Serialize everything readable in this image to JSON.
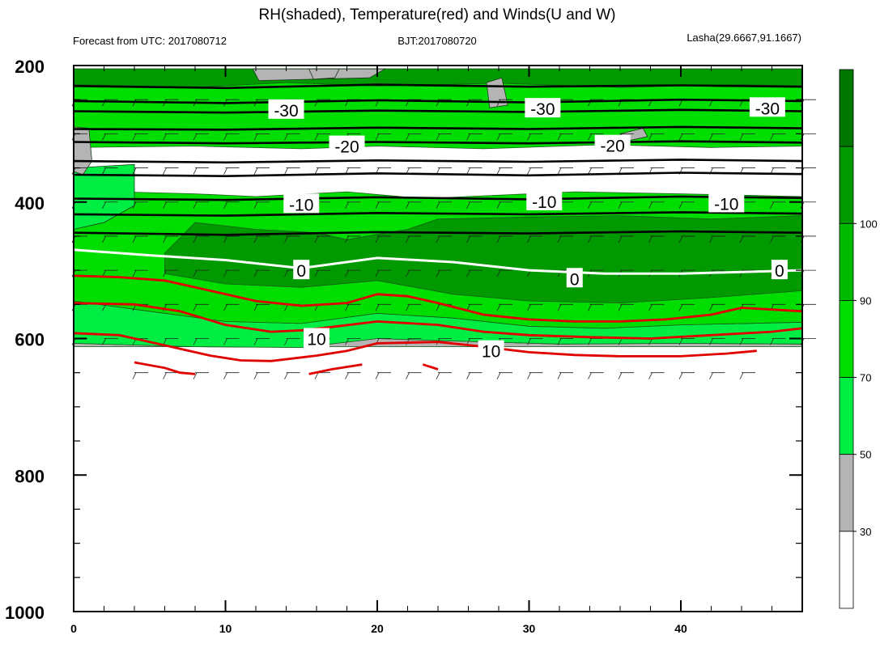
{
  "chart_data": {
    "type": "heatmap",
    "title": "RH(shaded), Temperature(red) and Winds(U and W)",
    "subtitle_left": "Forecast from UTC: 2017080712",
    "subtitle_center": "BJT:2017080720",
    "subtitle_right": "Lasha(29.6667,91.1667)",
    "x": {
      "range": [
        0,
        48
      ],
      "ticks": [
        0,
        10,
        20,
        30,
        40
      ],
      "tick_labels": [
        "0",
        "10",
        "20",
        "30",
        "40"
      ]
    },
    "y": {
      "range": [
        200,
        1000
      ],
      "inverted": true,
      "ticks": [
        200,
        400,
        600,
        800,
        1000
      ],
      "tick_labels": [
        "200",
        "400",
        "600",
        "800",
        "1000"
      ]
    },
    "colorbar": {
      "levels": [
        30,
        50,
        70,
        90,
        100
      ],
      "level_labels": [
        "30",
        "50",
        "70",
        "90",
        "100"
      ],
      "colors": [
        "#ffffff",
        "#b4b4b4",
        "#00ee44",
        "#00dd00",
        "#00bb00",
        "#009900",
        "#007700"
      ]
    },
    "rh_bands": [
      {
        "name": "terrain",
        "color": "#b4b4b4",
        "top": [
          [
            0,
            607
          ],
          [
            8,
            612
          ],
          [
            15,
            613
          ],
          [
            20,
            600
          ],
          [
            24,
            603
          ],
          [
            32,
            608
          ],
          [
            40,
            607
          ],
          [
            48,
            608
          ]
        ],
        "bottom": [
          [
            0,
            612
          ],
          [
            48,
            612
          ]
        ]
      },
      {
        "name": "50-70",
        "color": "#00ee44",
        "top": [
          [
            0,
            545
          ],
          [
            5,
            560
          ],
          [
            10,
            575
          ],
          [
            15,
            578
          ],
          [
            20,
            563
          ],
          [
            25,
            570
          ],
          [
            30,
            582
          ],
          [
            35,
            585
          ],
          [
            40,
            580
          ],
          [
            48,
            576
          ]
        ],
        "bottom": [
          [
            0,
            607
          ],
          [
            8,
            612
          ],
          [
            15,
            613
          ],
          [
            20,
            600
          ],
          [
            24,
            603
          ],
          [
            32,
            608
          ],
          [
            40,
            607
          ],
          [
            48,
            608
          ]
        ]
      },
      {
        "name": "70-90",
        "color": "#00dd00",
        "top": [
          [
            0,
            395
          ],
          [
            3,
            385
          ],
          [
            8,
            388
          ],
          [
            12,
            392
          ],
          [
            18,
            385
          ],
          [
            23,
            395
          ],
          [
            28,
            390
          ],
          [
            33,
            385
          ],
          [
            40,
            388
          ],
          [
            48,
            392
          ]
        ],
        "bottom": [
          [
            0,
            545
          ],
          [
            5,
            560
          ],
          [
            10,
            575
          ],
          [
            15,
            578
          ],
          [
            20,
            563
          ],
          [
            25,
            570
          ],
          [
            30,
            582
          ],
          [
            35,
            585
          ],
          [
            40,
            580
          ],
          [
            48,
            576
          ]
        ]
      },
      {
        "name": "90-100 core",
        "color": "#009900",
        "top": [
          [
            6,
            475
          ],
          [
            8,
            430
          ],
          [
            12,
            440
          ],
          [
            16,
            445
          ],
          [
            18,
            455
          ],
          [
            22,
            440
          ],
          [
            24,
            425
          ],
          [
            30,
            422
          ],
          [
            36,
            420
          ],
          [
            42,
            425
          ],
          [
            48,
            420
          ]
        ],
        "bottom": [
          [
            6,
            505
          ],
          [
            10,
            520
          ],
          [
            15,
            525
          ],
          [
            20,
            515
          ],
          [
            25,
            535
          ],
          [
            30,
            545
          ],
          [
            36,
            548
          ],
          [
            42,
            540
          ],
          [
            48,
            530
          ]
        ]
      },
      {
        "name": "upper 70-90",
        "color": "#00dd00",
        "top": [
          [
            0,
            205
          ],
          [
            48,
            205
          ]
        ],
        "bottom": [
          [
            0,
            320
          ],
          [
            8,
            318
          ],
          [
            15,
            322
          ],
          [
            20,
            318
          ],
          [
            27,
            322
          ],
          [
            35,
            316
          ],
          [
            42,
            320
          ],
          [
            48,
            318
          ]
        ]
      },
      {
        "name": "upper 90+",
        "color": "#009900",
        "top": [
          [
            0,
            205
          ],
          [
            48,
            205
          ]
        ],
        "bottom": [
          [
            0,
            228
          ],
          [
            8,
            232
          ],
          [
            14,
            225
          ],
          [
            20,
            230
          ],
          [
            28,
            226
          ],
          [
            36,
            232
          ],
          [
            44,
            228
          ],
          [
            48,
            230
          ]
        ]
      }
    ],
    "rh_patches": [
      {
        "color": "#00ee44",
        "points": [
          [
            0,
            350
          ],
          [
            4,
            345
          ],
          [
            4,
            405
          ],
          [
            2,
            430
          ],
          [
            0,
            440
          ]
        ]
      },
      {
        "color": "#b4b4b4",
        "points": [
          [
            0,
            290
          ],
          [
            1,
            292
          ],
          [
            1.2,
            340
          ],
          [
            0.6,
            360
          ],
          [
            0,
            355
          ]
        ]
      },
      {
        "color": "#b4b4b4",
        "points": [
          [
            11.8,
            205
          ],
          [
            20.5,
            205
          ],
          [
            19.5,
            218
          ],
          [
            12.2,
            222
          ]
        ]
      },
      {
        "color": "#b4b4b4",
        "points": [
          [
            15.5,
            205
          ],
          [
            17.5,
            205
          ],
          [
            17.2,
            218
          ],
          [
            15.8,
            220
          ]
        ]
      },
      {
        "color": "#b4b4b4",
        "points": [
          [
            27.2,
            225
          ],
          [
            28.2,
            218
          ],
          [
            28.6,
            258
          ],
          [
            27.4,
            262
          ]
        ]
      },
      {
        "color": "#b4b4b4",
        "points": [
          [
            36,
            300
          ],
          [
            37.5,
            292
          ],
          [
            37.8,
            304
          ],
          [
            36.6,
            310
          ]
        ]
      }
    ],
    "temperature_contours_black": [
      {
        "label": "-30",
        "label_at": [
          14,
          265
        ],
        "points": [
          [
            0,
            230
          ],
          [
            10,
            233
          ],
          [
            20,
            228
          ],
          [
            30,
            231
          ],
          [
            40,
            229
          ],
          [
            48,
            231
          ]
        ]
      },
      {
        "label": "-30",
        "label_at": [
          30.9,
          263
        ],
        "points": [
          [
            0,
            252
          ],
          [
            10,
            255
          ],
          [
            20,
            251
          ],
          [
            30,
            254
          ],
          [
            40,
            250
          ],
          [
            48,
            252
          ]
        ]
      },
      {
        "label": "-30",
        "label_at": [
          45.7,
          262
        ],
        "points": [
          [
            0,
            267
          ],
          [
            10,
            269
          ],
          [
            20,
            266
          ],
          [
            30,
            268
          ],
          [
            40,
            265
          ],
          [
            48,
            267
          ]
        ]
      },
      {
        "label": "",
        "label_at": null,
        "points": [
          [
            0,
            293
          ],
          [
            10,
            294
          ],
          [
            20,
            291
          ],
          [
            30,
            293
          ],
          [
            40,
            290
          ],
          [
            48,
            292
          ]
        ]
      },
      {
        "label": "-20",
        "label_at": [
          18,
          318
        ],
        "points": [
          [
            0,
            312
          ],
          [
            10,
            314
          ],
          [
            20,
            312
          ],
          [
            30,
            314
          ],
          [
            40,
            311
          ],
          [
            48,
            313
          ]
        ]
      },
      {
        "label": "-20",
        "label_at": [
          35.5,
          317
        ],
        "points": [
          [
            0,
            340
          ],
          [
            10,
            342
          ],
          [
            20,
            339
          ],
          [
            30,
            341
          ],
          [
            40,
            338
          ],
          [
            48,
            340
          ]
        ]
      },
      {
        "label": "",
        "label_at": null,
        "points": [
          [
            0,
            360
          ],
          [
            10,
            362
          ],
          [
            20,
            358
          ],
          [
            30,
            361
          ],
          [
            40,
            357
          ],
          [
            48,
            359
          ]
        ]
      },
      {
        "label": "-10",
        "label_at": [
          15,
          403
        ],
        "points": [
          [
            0,
            395
          ],
          [
            10,
            397
          ],
          [
            20,
            393
          ],
          [
            30,
            396
          ],
          [
            40,
            392
          ],
          [
            48,
            394
          ]
        ]
      },
      {
        "label": "-10",
        "label_at": [
          31,
          399
        ],
        "points": [
          [
            0,
            418
          ],
          [
            10,
            420
          ],
          [
            20,
            416
          ],
          [
            30,
            418
          ],
          [
            40,
            415
          ],
          [
            48,
            417
          ]
        ]
      },
      {
        "label": "-10",
        "label_at": [
          43,
          402
        ],
        "points": [
          [
            0,
            445
          ],
          [
            10,
            448
          ],
          [
            20,
            444
          ],
          [
            30,
            446
          ],
          [
            40,
            443
          ],
          [
            48,
            445
          ]
        ]
      }
    ],
    "zero_contour": {
      "label": "0",
      "labels_at": [
        [
          15,
          500
        ],
        [
          33,
          512
        ],
        [
          46.5,
          500
        ]
      ],
      "points": [
        [
          0,
          470
        ],
        [
          5,
          478
        ],
        [
          10,
          485
        ],
        [
          15,
          497
        ],
        [
          20,
          482
        ],
        [
          25,
          488
        ],
        [
          30,
          500
        ],
        [
          35,
          505
        ],
        [
          40,
          505
        ],
        [
          48,
          500
        ]
      ]
    },
    "temperature_contours_red": [
      {
        "label": "",
        "points": [
          [
            0,
            508
          ],
          [
            3,
            510
          ],
          [
            6,
            515
          ],
          [
            9,
            530
          ],
          [
            12,
            545
          ],
          [
            15,
            552
          ],
          [
            18,
            548
          ],
          [
            20,
            535
          ],
          [
            22,
            538
          ],
          [
            24,
            548
          ],
          [
            27,
            565
          ],
          [
            30,
            572
          ],
          [
            33,
            575
          ],
          [
            36,
            575
          ],
          [
            39,
            572
          ],
          [
            42,
            565
          ],
          [
            44,
            555
          ],
          [
            48,
            560
          ]
        ]
      },
      {
        "label": "10",
        "labels_at": [
          [
            16,
            600
          ]
        ],
        "points": [
          [
            0,
            548
          ],
          [
            4,
            550
          ],
          [
            7,
            560
          ],
          [
            10,
            580
          ],
          [
            13,
            590
          ],
          [
            15,
            588
          ],
          [
            17,
            583
          ],
          [
            20,
            575
          ],
          [
            24,
            580
          ],
          [
            27,
            590
          ],
          [
            30,
            595
          ],
          [
            34,
            598
          ],
          [
            38,
            600
          ],
          [
            42,
            595
          ],
          [
            46,
            590
          ],
          [
            48,
            585
          ]
        ]
      },
      {
        "label": "10",
        "labels_at": [
          [
            27.5,
            618
          ]
        ],
        "points": [
          [
            0,
            592
          ],
          [
            3,
            595
          ],
          [
            6,
            610
          ],
          [
            9,
            625
          ],
          [
            11,
            632
          ],
          [
            13,
            633
          ],
          [
            16,
            625
          ],
          [
            18,
            618
          ],
          [
            20,
            607
          ],
          [
            24,
            605
          ],
          [
            27,
            612
          ],
          [
            30,
            620
          ],
          [
            33,
            624
          ],
          [
            36,
            626
          ],
          [
            40,
            626
          ],
          [
            43,
            622
          ],
          [
            45,
            618
          ]
        ]
      },
      {
        "label": "",
        "points": [
          [
            4,
            635
          ],
          [
            6,
            643
          ],
          [
            7,
            650
          ],
          [
            8,
            652
          ]
        ]
      },
      {
        "label": "",
        "points": [
          [
            15.5,
            652
          ],
          [
            17,
            645
          ],
          [
            19,
            638
          ]
        ]
      },
      {
        "label": "",
        "points": [
          [
            23,
            638
          ],
          [
            24,
            645
          ]
        ]
      }
    ],
    "wind_barbs": {
      "levels": [
        250,
        300,
        350,
        400,
        450,
        500,
        550,
        600,
        650
      ],
      "x_step": 2
    }
  }
}
